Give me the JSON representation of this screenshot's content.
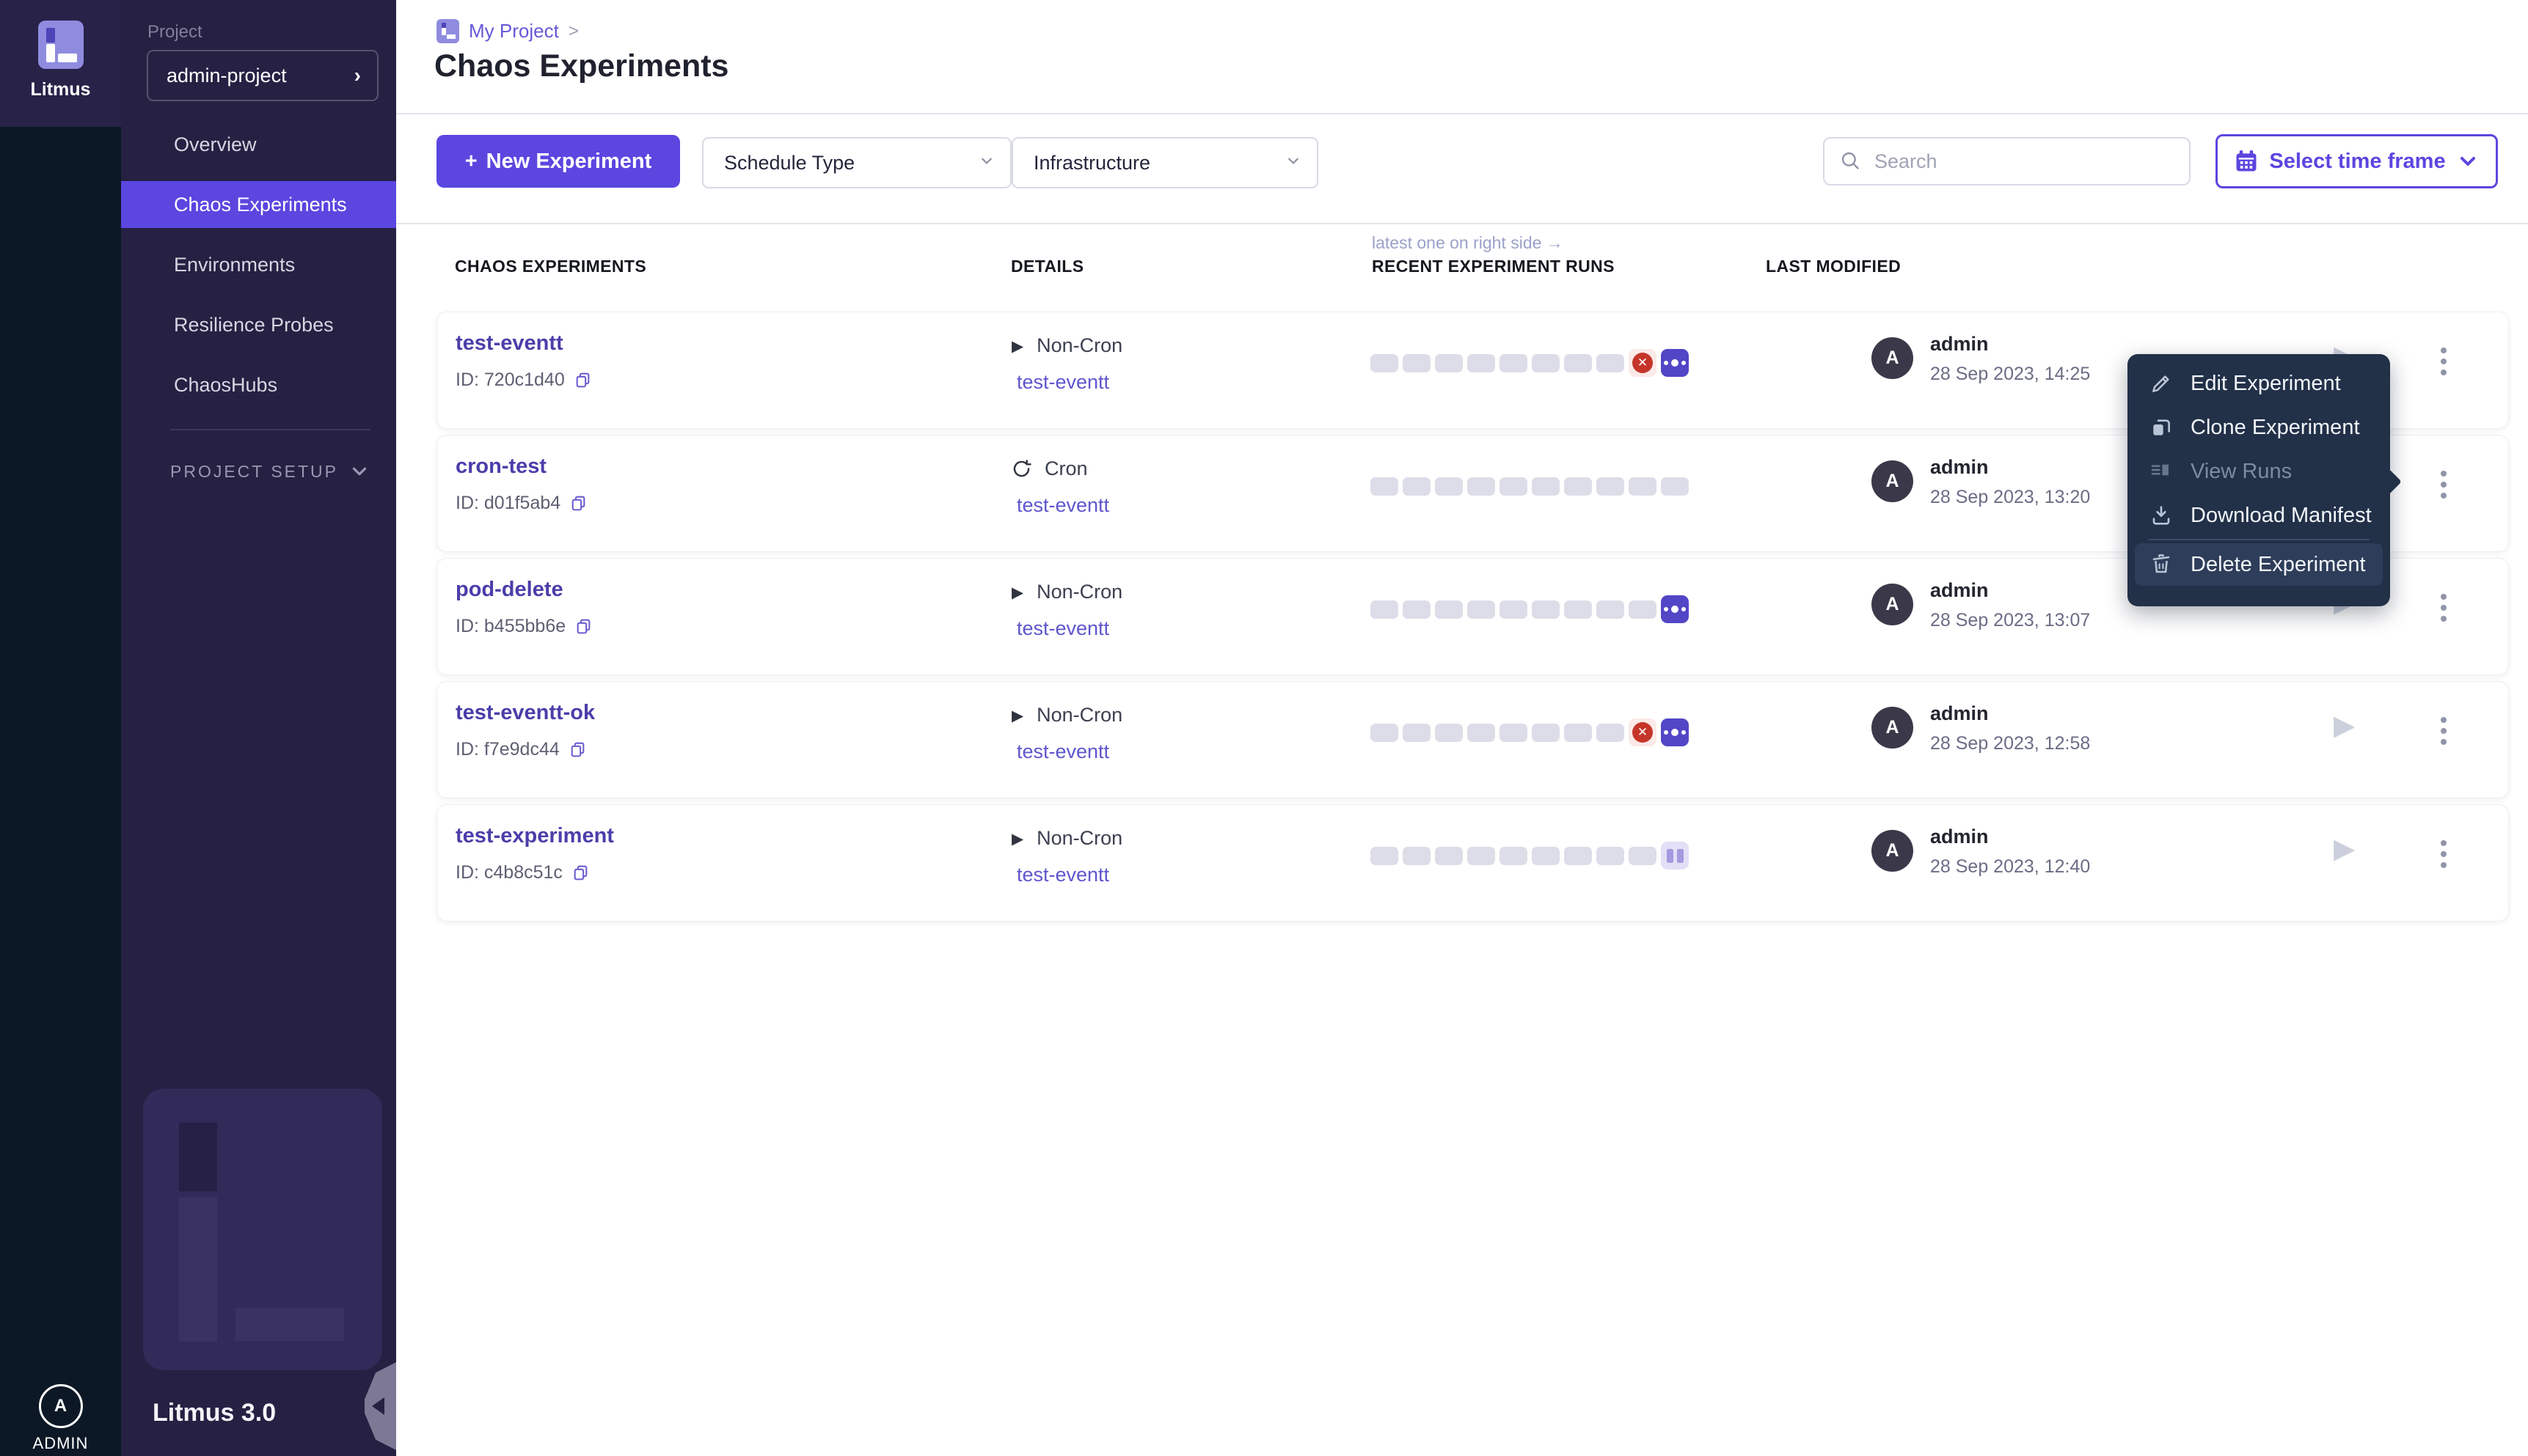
{
  "colors": {
    "accent": "#5b46e0",
    "run_badge_purple": "#5246c6",
    "failed_red": "#c53529",
    "menu_bg": "#223048",
    "link_purple": "#5e56cd",
    "name_indigo": "#4a3eaa"
  },
  "sidebar": {
    "logo_text": "Litmus",
    "project_label": "Project",
    "project_value": "admin-project",
    "nav": [
      {
        "label": "Overview",
        "active": false
      },
      {
        "label": "Chaos Experiments",
        "active": true
      },
      {
        "label": "Environments",
        "active": false
      },
      {
        "label": "Resilience Probes",
        "active": false
      },
      {
        "label": "ChaosHubs",
        "active": false
      }
    ],
    "section_label": "PROJECT SETUP",
    "version": "Litmus 3.0",
    "avatar_letter": "A",
    "user_label": "ADMIN"
  },
  "header": {
    "breadcrumb": "My Project",
    "breadcrumb_sep": ">",
    "title": "Chaos Experiments"
  },
  "toolbar": {
    "new_plus": "+",
    "new_experiment": "New Experiment",
    "schedule_type": "Schedule Type",
    "infrastructure": "Infrastructure",
    "search_placeholder": "Search",
    "time_frame": "Select time frame"
  },
  "table": {
    "note": "latest one on right side →",
    "headers": {
      "experiments": "CHAOS EXPERIMENTS",
      "details": "DETAILS",
      "runs": "RECENT EXPERIMENT RUNS",
      "modified": "LAST MODIFIED"
    },
    "rows": [
      {
        "name": "test-eventt",
        "id": "ID: 720c1d40",
        "schedule": "Non-Cron",
        "cron": false,
        "infra": "test-eventt",
        "pills": 8,
        "badges": [
          "failed",
          "running"
        ],
        "user": "admin",
        "date": "28 Sep 2023, 14:25"
      },
      {
        "name": "cron-test",
        "id": "ID: d01f5ab4",
        "schedule": "Cron",
        "cron": true,
        "infra": "test-eventt",
        "pills": 10,
        "badges": [],
        "user": "admin",
        "date": "28 Sep 2023, 13:20"
      },
      {
        "name": "pod-delete",
        "id": "ID: b455bb6e",
        "schedule": "Non-Cron",
        "cron": false,
        "infra": "test-eventt",
        "pills": 9,
        "badges": [
          "running"
        ],
        "user": "admin",
        "date": "28 Sep 2023, 13:07"
      },
      {
        "name": "test-eventt-ok",
        "id": "ID: f7e9dc44",
        "schedule": "Non-Cron",
        "cron": false,
        "infra": "test-eventt",
        "pills": 8,
        "badges": [
          "failed",
          "running"
        ],
        "user": "admin",
        "date": "28 Sep 2023, 12:58"
      },
      {
        "name": "test-experiment",
        "id": "ID: c4b8c51c",
        "schedule": "Non-Cron",
        "cron": false,
        "infra": "test-eventt",
        "pills": 9,
        "badges": [
          "paused"
        ],
        "user": "admin",
        "date": "28 Sep 2023, 12:40"
      }
    ]
  },
  "context_menu": {
    "items": [
      {
        "label": "Edit Experiment",
        "icon": "pencil",
        "disabled": false,
        "highlighted": false
      },
      {
        "label": "Clone Experiment",
        "icon": "clone",
        "disabled": false,
        "highlighted": false
      },
      {
        "label": "View Runs",
        "icon": "runs",
        "disabled": true,
        "highlighted": false
      },
      {
        "label": "Download Manifest",
        "icon": "download",
        "disabled": false,
        "highlighted": false
      },
      {
        "label": "Delete Experiment",
        "icon": "trash",
        "disabled": false,
        "highlighted": true
      }
    ]
  }
}
